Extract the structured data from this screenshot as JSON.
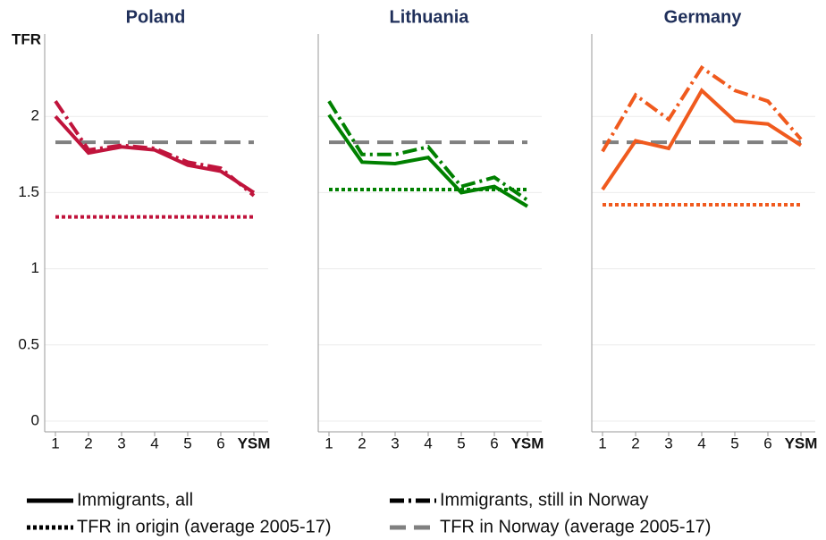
{
  "chart_data": [
    {
      "type": "line",
      "title": "Poland",
      "ylabel": "TFR",
      "x": [
        1,
        2,
        3,
        4,
        5,
        6,
        7
      ],
      "xlim": [
        1,
        7
      ],
      "xticks": [
        1,
        2,
        3,
        4,
        5,
        6,
        {
          "value": 7,
          "label": "YSM"
        }
      ],
      "ylim": [
        0,
        2.5
      ],
      "yticks": [
        0,
        0.5,
        1,
        1.5,
        2
      ],
      "grid": true,
      "series": [
        {
          "name": "Immigrants, all",
          "color": "#c0143c",
          "style": "solid",
          "values": [
            2.0,
            1.76,
            1.8,
            1.78,
            1.68,
            1.64,
            1.5
          ]
        },
        {
          "name": "Immigrants, still in Norway",
          "color": "#c0143c",
          "style": "dashdot",
          "values": [
            2.1,
            1.78,
            1.81,
            1.79,
            1.7,
            1.66,
            1.48
          ]
        },
        {
          "name": "TFR in origin (average 2005-17)",
          "color": "#c0143c",
          "style": "dotted",
          "values": [
            1.34,
            1.34,
            1.34,
            1.34,
            1.34,
            1.34,
            1.34
          ]
        },
        {
          "name": "TFR in Norway (average 2005-17)",
          "color": "#808080",
          "style": "dashed",
          "values": [
            1.83,
            1.83,
            1.83,
            1.83,
            1.83,
            1.83,
            1.83
          ]
        }
      ]
    },
    {
      "type": "line",
      "title": "Lithuania",
      "x": [
        1,
        2,
        3,
        4,
        5,
        6,
        7
      ],
      "xlim": [
        1,
        7
      ],
      "xticks": [
        1,
        2,
        3,
        4,
        5,
        6,
        {
          "value": 7,
          "label": "YSM"
        }
      ],
      "ylim": [
        0,
        2.5
      ],
      "yticks": [
        0,
        0.5,
        1,
        1.5,
        2
      ],
      "grid": true,
      "series": [
        {
          "name": "Immigrants, all",
          "color": "#008000",
          "style": "solid",
          "values": [
            2.01,
            1.7,
            1.69,
            1.73,
            1.5,
            1.54,
            1.41
          ]
        },
        {
          "name": "Immigrants, still in Norway",
          "color": "#008000",
          "style": "dashdot",
          "values": [
            2.1,
            1.75,
            1.75,
            1.8,
            1.54,
            1.6,
            1.45
          ]
        },
        {
          "name": "TFR in origin (average 2005-17)",
          "color": "#008000",
          "style": "dotted",
          "values": [
            1.52,
            1.52,
            1.52,
            1.52,
            1.52,
            1.52,
            1.52
          ]
        },
        {
          "name": "TFR in Norway (average 2005-17)",
          "color": "#808080",
          "style": "dashed",
          "values": [
            1.83,
            1.83,
            1.83,
            1.83,
            1.83,
            1.83,
            1.83
          ]
        }
      ]
    },
    {
      "type": "line",
      "title": "Germany",
      "x": [
        1,
        2,
        3,
        4,
        5,
        6,
        7
      ],
      "xlim": [
        1,
        7
      ],
      "xticks": [
        1,
        2,
        3,
        4,
        5,
        6,
        {
          "value": 7,
          "label": "YSM"
        }
      ],
      "ylim": [
        0,
        2.5
      ],
      "yticks": [
        0,
        0.5,
        1,
        1.5,
        2
      ],
      "grid": true,
      "series": [
        {
          "name": "Immigrants, all",
          "color": "#f05a1e",
          "style": "solid",
          "values": [
            1.52,
            1.84,
            1.79,
            2.17,
            1.97,
            1.95,
            1.81
          ]
        },
        {
          "name": "Immigrants, still in Norway",
          "color": "#f05a1e",
          "style": "dashdot",
          "values": [
            1.77,
            2.14,
            1.98,
            2.32,
            2.17,
            2.1,
            1.85
          ]
        },
        {
          "name": "TFR in origin (average 2005-17)",
          "color": "#f05a1e",
          "style": "dotted",
          "values": [
            1.42,
            1.42,
            1.42,
            1.42,
            1.42,
            1.42,
            1.42
          ]
        },
        {
          "name": "TFR in Norway (average 2005-17)",
          "color": "#808080",
          "style": "dashed",
          "values": [
            1.83,
            1.83,
            1.83,
            1.83,
            1.83,
            1.83,
            1.83
          ]
        }
      ]
    }
  ]
}
